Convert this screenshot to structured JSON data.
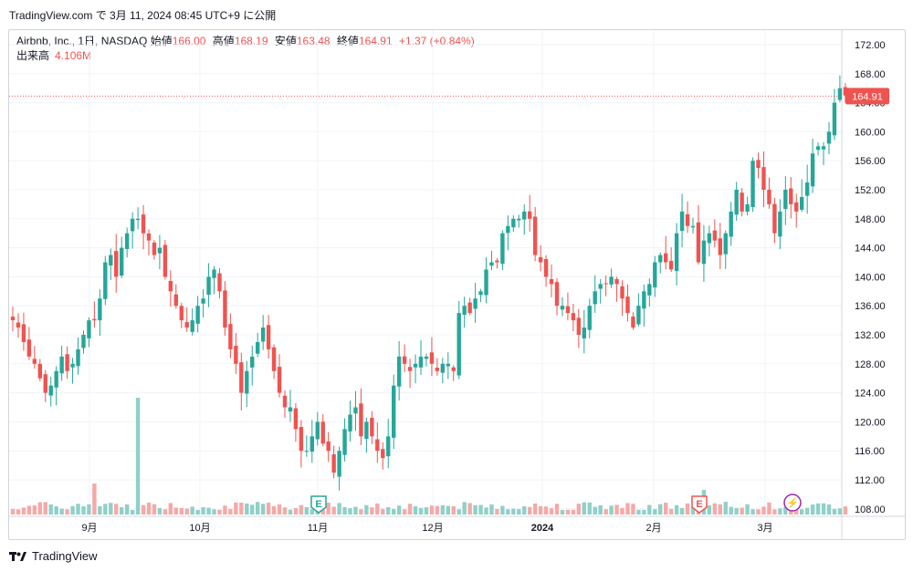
{
  "header": {
    "published": "TradingView.com で 3月 11, 2024 08:45 UTC+9 に公開"
  },
  "legend": {
    "symbol": "Airbnb, Inc., 1日, NASDAQ",
    "open_label": "始値",
    "open": "166.00",
    "high_label": "高値",
    "high": "168.19",
    "low_label": "安値",
    "low": "163.48",
    "close_label": "終値",
    "close": "164.91",
    "change": "+1.37 (+0.84%)",
    "volume_label": "出来高",
    "volume": "4.106M"
  },
  "brand": {
    "name": "TradingView"
  },
  "colors": {
    "up": "#26a69a",
    "down": "#ef5350",
    "up_vol": "#8fd0c7",
    "down_vol": "#f5a9a7",
    "grid": "#f0f3fa"
  },
  "chart_data": {
    "type": "candlestick",
    "title": "Airbnb, Inc., 1日, NASDAQ",
    "ylim": [
      108,
      174
    ],
    "y_ticks": [
      "172.00",
      "168.00",
      "164.00",
      "160.00",
      "156.00",
      "152.00",
      "148.00",
      "144.00",
      "140.00",
      "136.00",
      "132.00",
      "128.00",
      "124.00",
      "120.00",
      "116.00",
      "112.00",
      "108.00"
    ],
    "x_ticks": [
      "9月",
      "10月",
      "11月",
      "12月",
      "2024",
      "2月",
      "3月"
    ],
    "last_price": "164.91",
    "events": [
      "E",
      "E",
      "⚡"
    ],
    "series": [
      {
        "name": "price",
        "close": [
          134,
          133,
          131,
          129,
          128,
          126,
          124,
          125,
          127,
          129,
          127,
          128,
          130,
          132,
          134,
          134,
          137,
          142,
          143,
          140,
          144,
          146,
          148,
          148,
          146,
          145,
          143,
          144,
          140,
          138,
          136,
          134,
          133,
          134,
          136,
          137,
          140,
          141,
          138,
          133,
          130,
          128,
          124,
          127,
          129,
          131,
          133,
          130,
          127,
          124,
          122,
          122,
          119,
          116,
          116,
          118,
          120,
          117,
          116,
          113,
          116,
          119,
          121,
          122,
          118,
          120,
          118,
          116,
          115,
          118,
          125,
          129,
          128,
          127,
          128,
          129,
          129,
          128,
          127,
          128,
          128,
          127,
          135,
          136,
          135,
          137,
          138,
          141,
          142,
          142,
          146,
          147,
          148,
          148,
          149,
          148,
          143,
          142,
          140,
          139,
          136,
          136,
          135,
          134,
          132,
          133,
          136,
          138,
          139,
          139,
          140,
          139,
          137,
          135,
          133,
          136,
          138,
          139,
          142,
          143,
          142,
          141,
          146,
          149,
          147,
          147,
          142,
          145,
          146,
          145,
          143,
          146,
          149,
          152,
          149,
          150,
          156,
          155,
          152,
          150,
          146,
          149,
          152,
          150,
          149,
          151,
          153,
          157,
          158,
          158,
          160,
          164,
          166,
          165
        ]
      }
    ]
  }
}
